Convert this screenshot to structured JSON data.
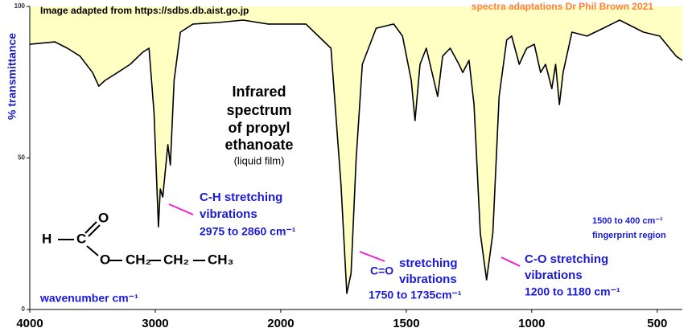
{
  "chart_data": {
    "type": "line",
    "source_note": "Image adapted from https://sdbs.db.aist.go.jp",
    "credit": "spectra adaptations Dr Phil Brown 2021",
    "title_lines": [
      "Infrared",
      "spectrum",
      "of  propyl",
      "ethanoate"
    ],
    "subtitle": "(liquid film)",
    "y_label": "% transmittance",
    "x_label": "wavenumber  cm⁻¹",
    "xlim": [
      4000,
      400
    ],
    "xscale_break": 2000,
    "xticks": [
      4000,
      3000,
      2000,
      1500,
      1000,
      500
    ],
    "ylim": [
      0,
      100
    ],
    "yticks": [
      0,
      50,
      100
    ],
    "color": "#000000",
    "fill_color": "#ffffc4",
    "x": [
      4000,
      3800,
      3700,
      3600,
      3500,
      3450,
      3400,
      3300,
      3200,
      3100,
      3050,
      3010,
      2975,
      2960,
      2940,
      2900,
      2880,
      2850,
      2800,
      2700,
      2500,
      2300,
      2100,
      1900,
      1800,
      1760,
      1737,
      1720,
      1700,
      1675,
      1620,
      1550,
      1515,
      1480,
      1465,
      1445,
      1420,
      1390,
      1375,
      1355,
      1325,
      1290,
      1275,
      1250,
      1230,
      1205,
      1180,
      1155,
      1130,
      1100,
      1080,
      1050,
      1035,
      1020,
      990,
      965,
      945,
      920,
      905,
      890,
      875,
      840,
      780,
      715,
      650,
      555,
      490,
      425,
      400
    ],
    "values": [
      87.5,
      88.3,
      86.2,
      83.6,
      78.2,
      73.7,
      75.6,
      78.2,
      80.9,
      84.9,
      86.2,
      65,
      27.3,
      39.8,
      37.1,
      54.4,
      47.7,
      75.6,
      91.5,
      94.2,
      94.7,
      95.5,
      94.2,
      94.2,
      86.2,
      41.1,
      5.3,
      11.9,
      49.1,
      80.9,
      92.8,
      94.2,
      90.2,
      75.6,
      62.3,
      80.9,
      86.2,
      75.6,
      70.3,
      83.6,
      86.2,
      80.9,
      78.2,
      82.2,
      67.6,
      25.2,
      9.8,
      25.2,
      70.3,
      88.9,
      90.2,
      80.9,
      83.6,
      86.2,
      87.5,
      78.2,
      80.9,
      72.9,
      80.9,
      67.6,
      78.2,
      91.5,
      90.2,
      92.8,
      95.5,
      91.5,
      90.2,
      83.6,
      82.2
    ],
    "annotations": [
      {
        "lines": [
          "C-H stretching",
          "vibrations",
          "2975 to 2860 cm⁻¹"
        ]
      },
      {
        "lines": [
          "C=O",
          "stretching",
          "vibrations",
          "1750 to 1735cm⁻¹"
        ]
      },
      {
        "lines": [
          "C-O stretching",
          "vibrations",
          "1200 to 1180  cm⁻¹"
        ]
      },
      {
        "lines": [
          "1500 to 400 cm⁻¹",
          "fingerprint region"
        ]
      }
    ],
    "structure": {
      "atoms": [
        "H",
        "C",
        "O",
        "O",
        "CH₂",
        "CH₂",
        "CH₃"
      ]
    }
  }
}
